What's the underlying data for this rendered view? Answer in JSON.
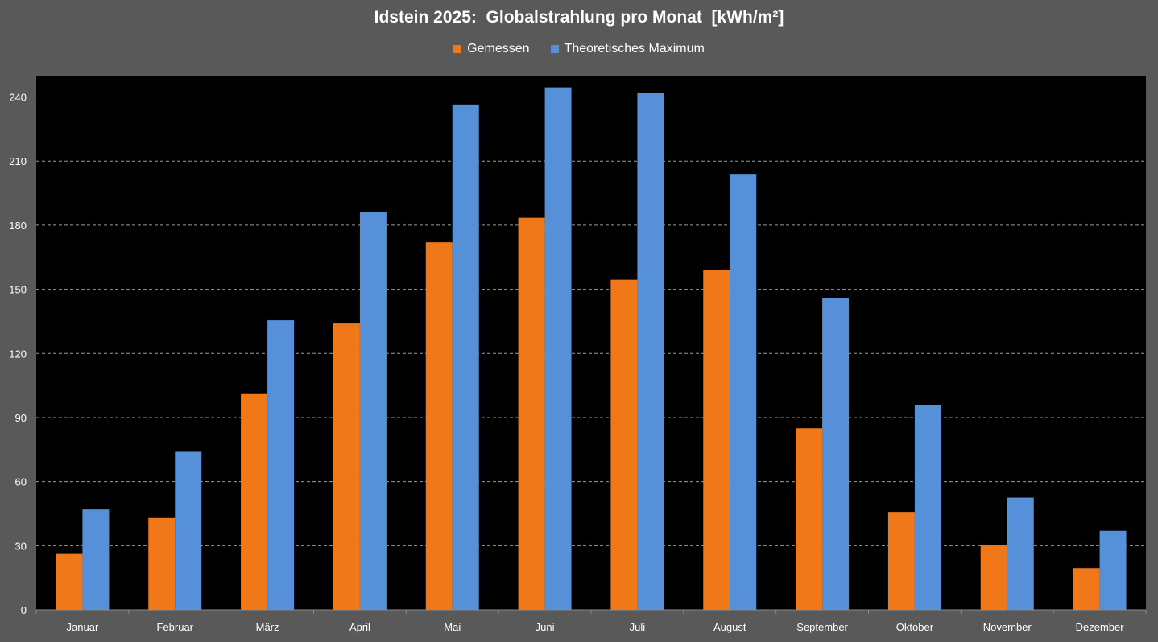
{
  "chart_data": {
    "type": "bar",
    "title": "Idstein 2025:  Globalstrahlung pro Monat  [kWh/m²]",
    "categories": [
      "Januar",
      "Februar",
      "März",
      "April",
      "Mai",
      "Juni",
      "Juli",
      "August",
      "September",
      "Oktober",
      "November",
      "Dezember"
    ],
    "series": [
      {
        "name": "Gemessen",
        "color": "#f07818",
        "values": [
          26.5,
          43,
          101,
          134,
          172,
          183.5,
          154.5,
          159,
          85,
          45.5,
          30.5,
          19.5
        ]
      },
      {
        "name": "Theoretisches Maximum",
        "color": "#5590d8",
        "values": [
          47,
          74,
          135.5,
          186,
          236.5,
          244.5,
          242,
          204,
          146,
          96,
          52.5,
          37
        ]
      }
    ],
    "ylim": [
      0,
      250
    ],
    "yticks": [
      0,
      30,
      60,
      90,
      120,
      150,
      180,
      210,
      240
    ],
    "xlabel": "",
    "ylabel": "",
    "grid": "horizontal dashed",
    "legend_position": "top",
    "plot_background": "#000000",
    "page_background": "#595959"
  }
}
